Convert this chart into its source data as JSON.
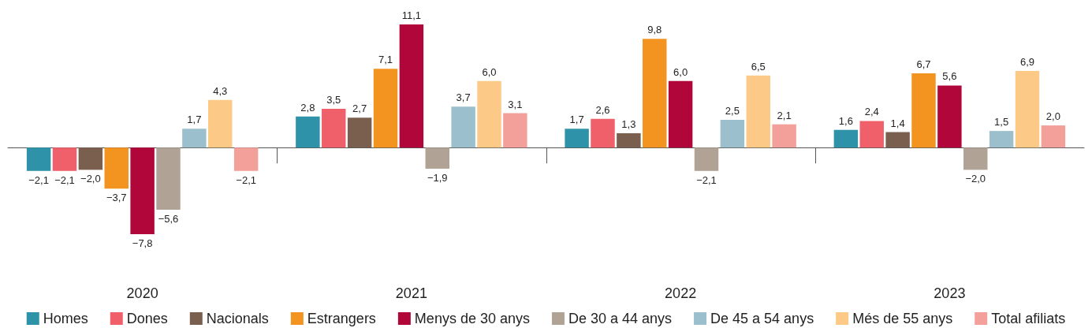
{
  "chart_data": {
    "type": "bar",
    "categories": [
      "2020",
      "2021",
      "2022",
      "2023"
    ],
    "legend": "bottom",
    "grid": false,
    "series": [
      {
        "name": "Homes",
        "color": "#2e93a8",
        "values": [
          -2.1,
          2.8,
          1.7,
          1.6
        ],
        "value_labels": [
          "−2,1",
          "2,8",
          "1,7",
          "1,6"
        ]
      },
      {
        "name": "Dones",
        "color": "#f0606a",
        "values": [
          -2.1,
          3.5,
          2.6,
          2.4
        ],
        "value_labels": [
          "−2,1",
          "3,5",
          "2,6",
          "2,4"
        ]
      },
      {
        "name": "Nacionals",
        "color": "#7a5f4e",
        "values": [
          -2.0,
          2.7,
          1.3,
          1.4
        ],
        "value_labels": [
          "−2,0",
          "2,7",
          "1,3",
          "1,4"
        ]
      },
      {
        "name": "Estrangers",
        "color": "#f39320",
        "values": [
          -3.7,
          7.1,
          9.8,
          6.7
        ],
        "value_labels": [
          "−3,7",
          "7,1",
          "9,8",
          "6,7"
        ]
      },
      {
        "name": "Menys de 30 anys",
        "color": "#b0063a",
        "values": [
          -7.8,
          11.1,
          6.0,
          5.6
        ],
        "value_labels": [
          "−7,8",
          "11,1",
          "6,0",
          "5,6"
        ]
      },
      {
        "name": "De 30 a 44 anys",
        "color": "#b0a295",
        "values": [
          -5.6,
          -1.9,
          -2.1,
          -2.0
        ],
        "value_labels": [
          "−5,6",
          "−1,9",
          "−2,1",
          "−2,0"
        ]
      },
      {
        "name": "De 45 a 54 anys",
        "color": "#9bbfcc",
        "values": [
          1.7,
          3.7,
          2.5,
          1.5
        ],
        "value_labels": [
          "1,7",
          "3,7",
          "2,5",
          "1,5"
        ]
      },
      {
        "name": "Més de 55 anys",
        "color": "#fcc987",
        "values": [
          4.3,
          6.0,
          6.5,
          6.9
        ],
        "value_labels": [
          "4,3",
          "6,0",
          "6,5",
          "6,9"
        ]
      },
      {
        "name": "Total afiliats",
        "color": "#f4a09a",
        "values": [
          -2.1,
          3.1,
          2.1,
          2.0
        ],
        "value_labels": [
          "−2,1",
          "3,1",
          "2,1",
          "2,0"
        ]
      }
    ]
  }
}
